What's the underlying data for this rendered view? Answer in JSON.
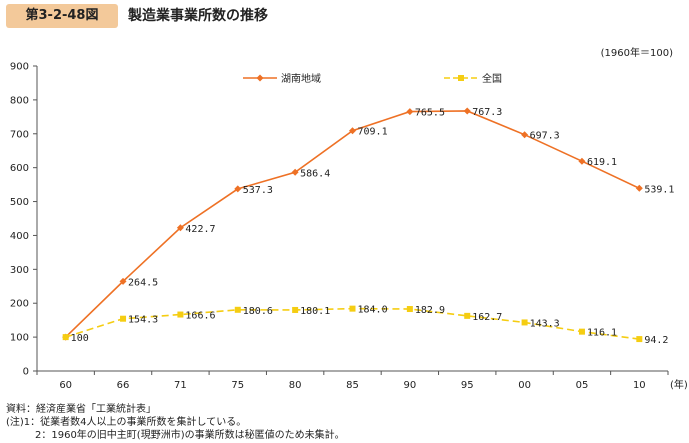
{
  "header": {
    "figure_label": "第3-2-48図",
    "title": "製造業事業所数の推移"
  },
  "base_note": "(1960年＝100)",
  "notes": {
    "source": "資料：経済産業省「工業統計表」",
    "note1": "(注)1：従業者数4人以上の事業所数を集計している。",
    "note2": "2：1960年の旧中主町(現野洲市)の事業所数は秘匿値のため未集計。"
  },
  "chart_data": {
    "type": "line",
    "title": "製造業事業所数の推移",
    "categories": [
      "60",
      "66",
      "71",
      "75",
      "80",
      "85",
      "90",
      "95",
      "00",
      "05",
      "10"
    ],
    "x_unit": "(年)",
    "ylim": [
      0,
      900
    ],
    "yticks": [
      0,
      100,
      200,
      300,
      400,
      500,
      600,
      700,
      800,
      900
    ],
    "grid": false,
    "legend_position": "top",
    "series": [
      {
        "name": "湖南地域",
        "color": "#ee7125",
        "dash": "solid",
        "marker": "diamond",
        "values": [
          100,
          264.5,
          422.7,
          537.3,
          586.4,
          709.1,
          765.5,
          767.3,
          697.3,
          619.1,
          539.1
        ],
        "labels": [
          "",
          "264.5",
          "422.7",
          "537.3",
          "586.4",
          "709.1",
          "765.5",
          "767.3",
          "697.3",
          "619.1",
          "539.1"
        ]
      },
      {
        "name": "全国",
        "color": "#f5cd12",
        "dash": "dashed",
        "marker": "square",
        "values": [
          100,
          154.3,
          166.6,
          180.6,
          180.1,
          184.0,
          182.9,
          162.7,
          143.3,
          116.1,
          94.2
        ],
        "labels": [
          "100",
          "154.3",
          "166.6",
          "180.6",
          "180.1",
          "184.0",
          "182.9",
          "162.7",
          "143.3",
          "116.1",
          "94.2"
        ]
      }
    ]
  }
}
